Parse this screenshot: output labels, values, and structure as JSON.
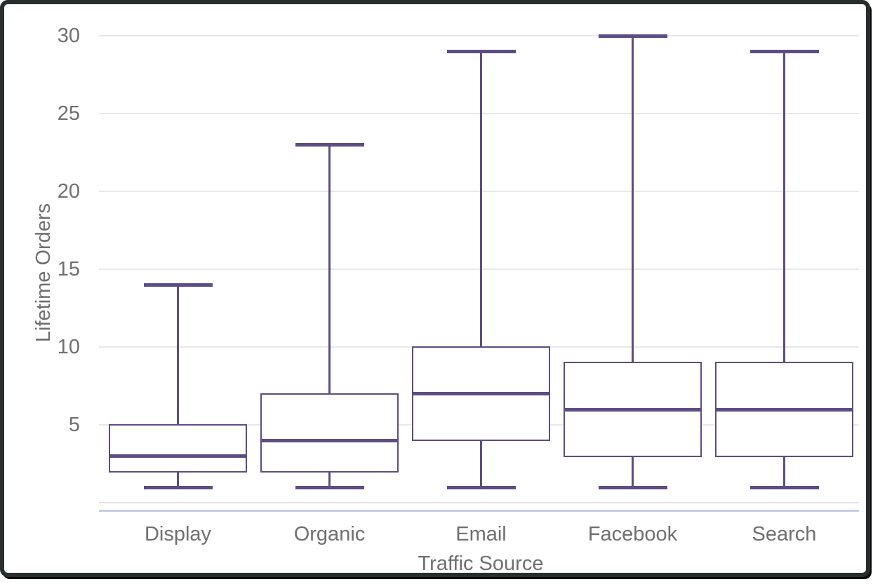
{
  "chart_data": {
    "type": "box",
    "title": "",
    "xlabel": "Traffic Source",
    "ylabel": "Lifetime Orders",
    "ylim": [
      0,
      31
    ],
    "yticks": [
      5,
      10,
      15,
      20,
      25,
      30
    ],
    "grid": true,
    "legend": false,
    "categories": [
      "Display",
      "Organic",
      "Email",
      "Facebook",
      "Search"
    ],
    "series": [
      {
        "name": "Display",
        "whisker_low": 1,
        "q1": 2,
        "median": 3,
        "q3": 5,
        "whisker_high": 14
      },
      {
        "name": "Organic",
        "whisker_low": 1,
        "q1": 2,
        "median": 4,
        "q3": 7,
        "whisker_high": 23
      },
      {
        "name": "Email",
        "whisker_low": 1,
        "q1": 4,
        "median": 7,
        "q3": 10,
        "whisker_high": 29
      },
      {
        "name": "Facebook",
        "whisker_low": 1,
        "q1": 3,
        "median": 6,
        "q3": 9,
        "whisker_high": 30
      },
      {
        "name": "Search",
        "whisker_low": 1,
        "q1": 3,
        "median": 6,
        "q3": 9,
        "whisker_high": 29
      }
    ],
    "colors": {
      "box_stroke": "#5e4c84",
      "box_fill": "#ffffff",
      "gridline": "#e8e8e8",
      "zero_line": "#e2e2e6",
      "baseline": "#c3cde6",
      "axis_text": "#6f6f6f",
      "frame_border": "#282d2e"
    }
  }
}
